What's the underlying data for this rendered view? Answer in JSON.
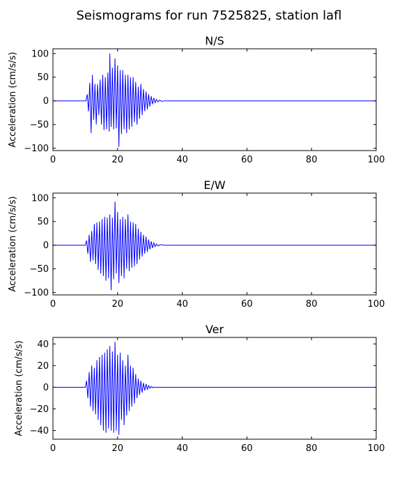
{
  "figure": {
    "title": "Seismograms for run 7525825, station lafl"
  },
  "chart_data": [
    {
      "type": "line",
      "title": "N/S",
      "xlabel": "",
      "ylabel": "Acceleration (cm/s/s)",
      "xlim": [
        0,
        100
      ],
      "ylim": [
        -105,
        110
      ],
      "xticks": [
        0,
        20,
        40,
        60,
        80,
        100
      ],
      "yticks": [
        -100,
        -50,
        0,
        50,
        100
      ],
      "grid": false,
      "series": [
        {
          "color": "#0000ff",
          "x": [
            0,
            10.2,
            10.6,
            11.0,
            11.4,
            11.8,
            12.2,
            12.6,
            13.0,
            13.4,
            13.8,
            14.2,
            14.6,
            15.0,
            15.4,
            15.8,
            16.2,
            16.6,
            17.0,
            17.4,
            17.6,
            18.0,
            18.4,
            18.8,
            19.2,
            19.6,
            20.0,
            20.4,
            20.8,
            21.2,
            21.6,
            22.0,
            22.4,
            22.8,
            23.2,
            23.6,
            24.0,
            24.4,
            24.8,
            25.2,
            25.6,
            26.0,
            26.4,
            26.8,
            27.2,
            27.6,
            28.0,
            28.4,
            28.8,
            29.2,
            29.6,
            30.0,
            30.4,
            30.8,
            31.2,
            31.6,
            32.0,
            32.5,
            33.0,
            33.6,
            34.5,
            40,
            60,
            80,
            100
          ],
          "y": [
            0,
            0,
            14,
            -22,
            38,
            -68,
            55,
            -40,
            36,
            -50,
            35,
            -30,
            45,
            -50,
            55,
            -62,
            50,
            -60,
            60,
            -65,
            100,
            -55,
            70,
            -60,
            90,
            -58,
            75,
            -97,
            65,
            -70,
            65,
            -60,
            55,
            -68,
            55,
            -60,
            50,
            -55,
            50,
            -45,
            40,
            -50,
            30,
            -38,
            36,
            -30,
            25,
            -22,
            20,
            -18,
            14,
            -12,
            10,
            -7,
            6,
            -4,
            3,
            -2,
            1.5,
            -1,
            0,
            0,
            0,
            0,
            0
          ]
        }
      ]
    },
    {
      "type": "line",
      "title": "E/W",
      "xlabel": "",
      "ylabel": "Acceleration (cm/s/s)",
      "xlim": [
        0,
        100
      ],
      "ylim": [
        -105,
        110
      ],
      "xticks": [
        0,
        20,
        40,
        60,
        80,
        100
      ],
      "yticks": [
        -100,
        -50,
        0,
        50,
        100
      ],
      "grid": false,
      "series": [
        {
          "color": "#0000ff",
          "x": [
            0,
            10.0,
            10.4,
            10.8,
            11.2,
            11.6,
            12.0,
            12.4,
            12.8,
            13.2,
            13.6,
            14.0,
            14.4,
            14.8,
            15.2,
            15.6,
            16.0,
            16.4,
            16.8,
            17.2,
            17.6,
            18.0,
            18.4,
            18.8,
            19.2,
            19.6,
            20.0,
            20.4,
            20.8,
            21.2,
            21.6,
            22.0,
            22.4,
            22.8,
            23.2,
            23.6,
            24.0,
            24.4,
            24.8,
            25.2,
            25.6,
            26.0,
            26.4,
            26.8,
            27.2,
            27.6,
            28.0,
            28.4,
            28.8,
            29.2,
            29.6,
            30.0,
            30.4,
            30.8,
            31.2,
            31.6,
            32.0,
            32.5,
            33.2,
            34.5,
            40,
            60,
            80,
            100
          ],
          "y": [
            0,
            0,
            10,
            -18,
            22,
            -35,
            30,
            -32,
            45,
            -40,
            48,
            -52,
            50,
            -60,
            55,
            -65,
            60,
            -75,
            58,
            -70,
            65,
            -95,
            58,
            -72,
            92,
            -60,
            70,
            -80,
            55,
            -65,
            60,
            -70,
            55,
            -50,
            65,
            -55,
            50,
            -48,
            48,
            -45,
            45,
            -40,
            35,
            -30,
            28,
            -24,
            22,
            -18,
            18,
            -14,
            12,
            -9,
            8,
            -6,
            5,
            -3,
            2.5,
            -1.5,
            1,
            0,
            0,
            0,
            0,
            0
          ]
        }
      ]
    },
    {
      "type": "line",
      "title": "Ver",
      "xlabel": "",
      "ylabel": "Acceleration (cm/s/s)",
      "xlim": [
        0,
        100
      ],
      "ylim": [
        -48,
        46
      ],
      "xticks": [
        0,
        20,
        40,
        60,
        80,
        100
      ],
      "yticks": [
        -40,
        -20,
        0,
        20,
        40
      ],
      "grid": false,
      "series": [
        {
          "color": "#0000ff",
          "x": [
            0,
            10.0,
            10.4,
            10.8,
            11.2,
            11.6,
            12.0,
            12.4,
            12.8,
            13.2,
            13.6,
            14.0,
            14.4,
            14.8,
            15.2,
            15.6,
            16.0,
            16.4,
            16.8,
            17.2,
            17.6,
            18.0,
            18.4,
            18.8,
            19.2,
            19.6,
            20.0,
            20.4,
            20.8,
            21.2,
            21.6,
            22.0,
            22.4,
            22.8,
            23.2,
            23.6,
            24.0,
            24.4,
            24.8,
            25.2,
            25.6,
            26.0,
            26.4,
            26.8,
            27.2,
            27.6,
            28.0,
            28.4,
            28.8,
            29.2,
            29.6,
            30.0,
            30.4,
            30.8,
            31.2,
            31.6,
            32.0,
            32.6,
            33.4,
            34.5,
            40,
            60,
            80,
            100
          ],
          "y": [
            0,
            0,
            6,
            -10,
            14,
            -18,
            20,
            -22,
            18,
            -25,
            25,
            -30,
            28,
            -35,
            30,
            -40,
            32,
            -42,
            35,
            -38,
            38,
            -40,
            33,
            -42,
            42,
            -40,
            30,
            -44,
            32,
            -30,
            25,
            -35,
            20,
            -26,
            30,
            -22,
            20,
            -18,
            18,
            -15,
            12,
            -10,
            8,
            -7,
            6,
            -5,
            4,
            -3,
            3,
            -2,
            1.5,
            -1,
            0.8,
            -0.5,
            0.3,
            0,
            0,
            0,
            0,
            0,
            0,
            0,
            0,
            0
          ]
        }
      ]
    }
  ]
}
